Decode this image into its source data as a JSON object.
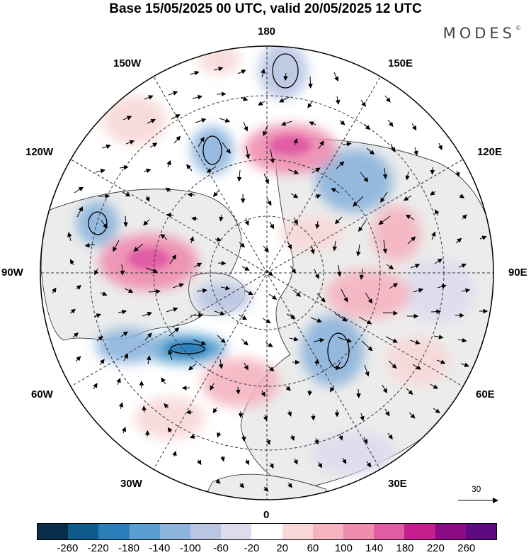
{
  "title": "Base 15/05/2025 00 UTC, valid 20/05/2025 12 UTC",
  "brand": "MODES",
  "brand_mark": "©",
  "longitude_labels": {
    "top": "180",
    "bottom": "0",
    "left": "90W",
    "right": "90E",
    "upper_left_1": "150W",
    "upper_left_2": "120W",
    "upper_right_1": "150E",
    "upper_right_2": "120E",
    "lower_left_1": "60W",
    "lower_left_2": "30W",
    "lower_right_1": "60E",
    "lower_right_2": "30E"
  },
  "reference_vector": {
    "value": "30",
    "icon": "arrow-right-icon"
  },
  "colorbar": {
    "ticks": [
      "-260",
      "-220",
      "-180",
      "-140",
      "-100",
      "-60",
      "-20",
      "20",
      "60",
      "100",
      "140",
      "180",
      "220",
      "260"
    ],
    "colors": [
      "#0a2e4a",
      "#0e5a8a",
      "#2a7fba",
      "#5a9fd0",
      "#8cb4dc",
      "#b9c5e3",
      "#dcdcee",
      "#ffffff",
      "#f8d8d8",
      "#f5b4c0",
      "#ef8cb0",
      "#e05ca4",
      "#c41f8c",
      "#8c0a86",
      "#5e0a80"
    ]
  },
  "map_features": {
    "projection": "north-polar-stereographic",
    "graticule": "dashed",
    "coastlines": "black",
    "land_fill": "#ececec"
  }
}
